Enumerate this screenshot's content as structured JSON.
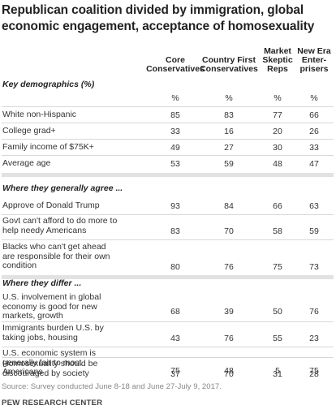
{
  "title_lines": [
    "Republican coalition divided by immigration, global",
    "economic engagement,  acceptance of homosexuality"
  ],
  "columns": [
    {
      "lines": [
        "Core",
        "Conservatives"
      ]
    },
    {
      "lines": [
        "Country First",
        "Conservatives"
      ]
    },
    {
      "lines": [
        "Market",
        "Skeptic",
        "Reps"
      ]
    },
    {
      "lines": [
        "New Era",
        "Enter-",
        "prisers"
      ]
    }
  ],
  "sections": [
    {
      "title": "Key demographics (%)",
      "rows": [
        {
          "label": [
            ""
          ],
          "values": [
            "%",
            "%",
            "%",
            "%"
          ]
        },
        {
          "label": [
            "White non-Hispanic"
          ],
          "values": [
            "85",
            "83",
            "77",
            "66"
          ]
        },
        {
          "label": [
            "College grad+"
          ],
          "values": [
            "33",
            "16",
            "20",
            "26"
          ]
        },
        {
          "label": [
            "Family income of $75K+"
          ],
          "values": [
            "49",
            "27",
            "30",
            "33"
          ]
        },
        {
          "label": [
            "Average age"
          ],
          "values": [
            "53",
            "59",
            "48",
            "47"
          ]
        }
      ]
    },
    {
      "title": "Where they generally agree ...",
      "rows": [
        {
          "label": [
            "Approve of Donald Trump"
          ],
          "values": [
            "93",
            "84",
            "66",
            "63"
          ]
        },
        {
          "label": [
            "Govt can't afford to do more to",
            "help needy Americans"
          ],
          "values": [
            "83",
            "70",
            "58",
            "59"
          ]
        },
        {
          "label": [
            "Blacks who can't get ahead",
            "are responsible for their own",
            "condition"
          ],
          "values": [
            "80",
            "76",
            "75",
            "73"
          ]
        }
      ]
    },
    {
      "title": "Where they differ ...",
      "rows": [
        {
          "label": [
            "U.S. involvement in global",
            "economy is good for new",
            "markets, growth"
          ],
          "values": [
            "68",
            "39",
            "50",
            "76"
          ]
        },
        {
          "label": [
            "Immigrants burden U.S. by",
            "taking jobs, housing"
          ],
          "values": [
            "43",
            "76",
            "55",
            "23"
          ]
        },
        {
          "label": [
            "U.S. economic system is",
            "generally fair to most",
            "Americans"
          ],
          "values": [
            "75",
            "48",
            "5",
            "75"
          ]
        },
        {
          "label": [
            "Homosexuality should be",
            "discouraged by society"
          ],
          "values": [
            "37",
            "70",
            "31",
            "28"
          ]
        }
      ]
    }
  ],
  "source": "Source: Survey conducted June 8-18 and June 27-July 9, 2017.",
  "brand": "PEW RESEARCH CENTER"
}
